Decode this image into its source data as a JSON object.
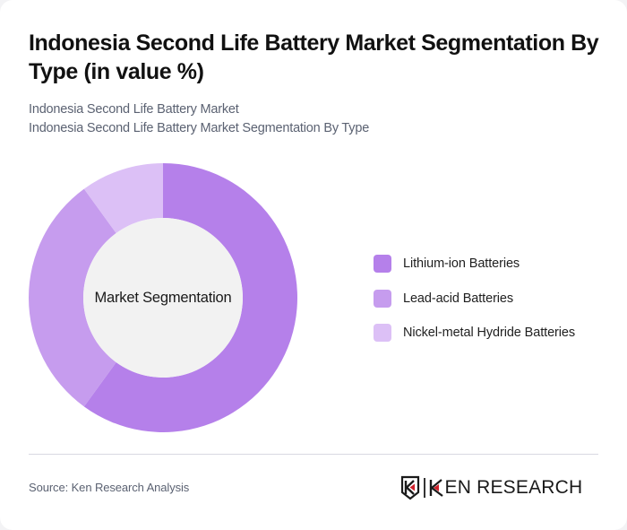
{
  "header": {
    "title": "Indonesia Second Life Battery Market Segmentation By Type (in value %)",
    "subtitle_line1": "Indonesia Second Life Battery Market",
    "subtitle_line2": "Indonesia Second Life Battery Market Segmentation By Type"
  },
  "donut": {
    "center_label": "Market Segmentation",
    "center_fill": "#f2f2f2"
  },
  "legend": {
    "items": [
      {
        "label": "Lithium-ion Batteries",
        "color": "#b580ea"
      },
      {
        "label": "Lead-acid Batteries",
        "color": "#c69cee"
      },
      {
        "label": "Nickel-metal Hydride Batteries",
        "color": "#dcc0f6"
      }
    ]
  },
  "footer": {
    "source": "Source: Ken Research Analysis",
    "logo_text": "KEN RESEARCH",
    "logo_accent": "#d0202a"
  },
  "chart_data": {
    "type": "pie",
    "subtype": "donut",
    "title": "Indonesia Second Life Battery Market Segmentation By Type (in value %)",
    "subtitle": [
      "Indonesia Second Life Battery Market",
      "Indonesia Second Life Battery Market Segmentation By Type"
    ],
    "center_text": "Market Segmentation",
    "categories": [
      "Lithium-ion Batteries",
      "Lead-acid Batteries",
      "Nickel-metal Hydride Batteries"
    ],
    "values": [
      60,
      30,
      10
    ],
    "unit": "%",
    "colors": [
      "#b580ea",
      "#c69cee",
      "#dcc0f6"
    ],
    "start_angle": "12 o'clock, clockwise",
    "legend_position": "right",
    "data_labels": false,
    "source": "Source: Ken Research Analysis"
  }
}
